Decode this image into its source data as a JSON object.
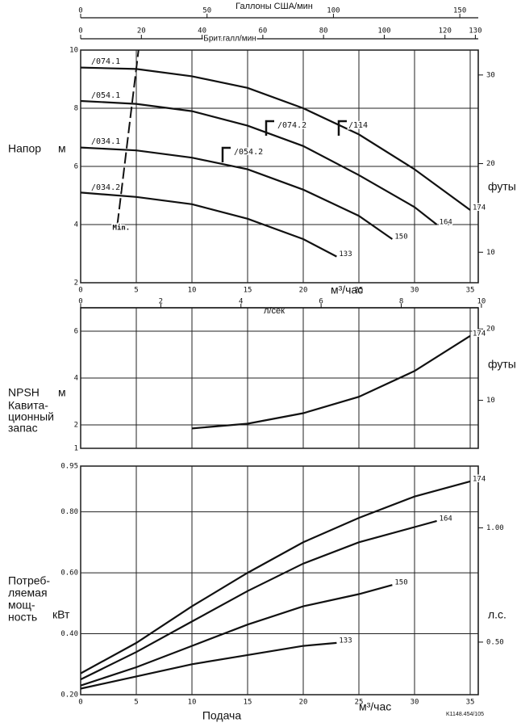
{
  "chart_data": [
    {
      "type": "line",
      "title": "Напор",
      "ylabel": "м",
      "y2label": "футы",
      "xlabel": "м³/час",
      "top_axes": [
        {
          "label": "Галлоны США/мин",
          "lim": [
            0,
            154.1
          ],
          "ticks": [
            0,
            50,
            100,
            150
          ]
        },
        {
          "label": "Брит.галл/мин",
          "lim": [
            0,
            128.3
          ],
          "ticks": [
            0,
            20,
            40,
            60,
            80,
            100,
            120,
            130
          ]
        }
      ],
      "xlim": [
        0,
        35
      ],
      "xticks": [
        0,
        5,
        10,
        15,
        20,
        25,
        30,
        35
      ],
      "ylim": [
        2,
        10
      ],
      "yticks": [
        2,
        4,
        6,
        8,
        10
      ],
      "y2lim": [
        6.56,
        32.81
      ],
      "y2ticks": [
        10,
        20,
        30
      ],
      "grid": true,
      "series": [
        {
          "name": "174",
          "color": "#111111",
          "x": [
            0,
            5,
            10,
            15,
            20,
            25,
            30,
            35
          ],
          "values": [
            9.4,
            9.35,
            9.1,
            8.7,
            8.0,
            7.1,
            5.9,
            4.5
          ]
        },
        {
          "name": "164",
          "color": "#111111",
          "x": [
            0,
            5,
            10,
            15,
            20,
            25,
            30,
            32
          ],
          "values": [
            8.25,
            8.15,
            7.9,
            7.4,
            6.7,
            5.7,
            4.6,
            4.0
          ]
        },
        {
          "name": "150",
          "color": "#111111",
          "x": [
            0,
            5,
            10,
            15,
            20,
            25,
            28
          ],
          "values": [
            6.65,
            6.55,
            6.3,
            5.9,
            5.2,
            4.3,
            3.5
          ]
        },
        {
          "name": "133",
          "color": "#111111",
          "x": [
            0,
            5,
            10,
            15,
            20,
            23
          ],
          "values": [
            5.1,
            4.95,
            4.7,
            4.2,
            3.5,
            2.9
          ]
        }
      ],
      "min_line": {
        "name": "Min.",
        "x": [
          3.3,
          5.2
        ],
        "values": [
          4,
          10
        ]
      },
      "annotations": [
        "/074.1",
        "/054.1",
        "/034.1",
        "/034.2",
        "/074.2",
        "/054.2",
        "/114"
      ]
    },
    {
      "type": "line",
      "title": "NPSH",
      "ylabel": "м",
      "y2label": "футы",
      "subtitle_lines": [
        "Кавита-",
        "ционный",
        "запас"
      ],
      "top_axes": [
        {
          "label": "л/сек",
          "lim": [
            0,
            9.72
          ],
          "ticks": [
            0,
            2,
            4,
            6,
            8,
            10
          ]
        }
      ],
      "xlim": [
        0,
        35
      ],
      "xticks": [
        0,
        5,
        10,
        15,
        20,
        25,
        30,
        35
      ],
      "ylim": [
        1,
        7
      ],
      "yticks": [
        1,
        2,
        4,
        6
      ],
      "y2lim": [
        3.28,
        22.97
      ],
      "y2ticks": [
        10,
        20
      ],
      "grid": true,
      "series": [
        {
          "name": "174",
          "color": "#111111",
          "x": [
            10,
            15,
            20,
            25,
            30,
            35
          ],
          "values": [
            1.85,
            2.05,
            2.5,
            3.2,
            4.3,
            5.8
          ]
        }
      ]
    },
    {
      "type": "line",
      "title_lines": [
        "Потреб-",
        "ляемая",
        "мощ-",
        "ность"
      ],
      "ylabel": "кВт",
      "y2label": "л.с.",
      "xlabel": "Подача",
      "x_unit": "м³/час",
      "code": "K1148.454/105",
      "xlim": [
        0,
        35
      ],
      "xticks": [
        0,
        5,
        10,
        15,
        20,
        25,
        30,
        35
      ],
      "ylim": [
        0.2,
        0.95
      ],
      "yticks": [
        {
          "value": 0.2,
          "label": "0.20"
        },
        {
          "value": 0.4,
          "label": "0.40"
        },
        {
          "value": 0.6,
          "label": "0.60"
        },
        {
          "value": 0.8,
          "label": "0.80"
        },
        {
          "value": 0.95,
          "label": "0.95"
        }
      ],
      "y2lim": [
        0.27,
        1.27
      ],
      "y2ticks": [
        {
          "value": 0.5,
          "label": "0.50"
        },
        {
          "value": 1.0,
          "label": "1.00"
        }
      ],
      "grid": true,
      "series": [
        {
          "name": "174",
          "color": "#111111",
          "x": [
            0,
            5,
            10,
            15,
            20,
            25,
            30,
            35
          ],
          "values": [
            0.27,
            0.37,
            0.49,
            0.6,
            0.7,
            0.78,
            0.85,
            0.9
          ]
        },
        {
          "name": "164",
          "color": "#111111",
          "x": [
            0,
            5,
            10,
            15,
            20,
            25,
            30,
            32
          ],
          "values": [
            0.25,
            0.34,
            0.44,
            0.54,
            0.63,
            0.7,
            0.75,
            0.77
          ]
        },
        {
          "name": "150",
          "color": "#111111",
          "x": [
            0,
            5,
            10,
            15,
            20,
            25,
            28
          ],
          "values": [
            0.23,
            0.29,
            0.36,
            0.43,
            0.49,
            0.53,
            0.56
          ]
        },
        {
          "name": "133",
          "color": "#111111",
          "x": [
            0,
            5,
            10,
            15,
            20,
            23
          ],
          "values": [
            0.22,
            0.26,
            0.3,
            0.33,
            0.36,
            0.37
          ]
        }
      ]
    }
  ]
}
